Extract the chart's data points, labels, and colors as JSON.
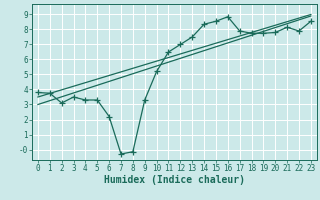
{
  "xlabel": "Humidex (Indice chaleur)",
  "ylabel": "",
  "background_color": "#cce9e9",
  "line_color": "#1a6b5a",
  "grid_color": "#ffffff",
  "xlim": [
    -0.5,
    23.5
  ],
  "ylim": [
    -0.7,
    9.7
  ],
  "xtick_vals": [
    0,
    1,
    2,
    3,
    4,
    5,
    6,
    7,
    8,
    9,
    10,
    11,
    12,
    13,
    14,
    15,
    16,
    17,
    18,
    19,
    20,
    21,
    22,
    23
  ],
  "xtick_labels": [
    "0",
    "1",
    "2",
    "3",
    "4",
    "5",
    "6",
    "7",
    "8",
    "9",
    "10",
    "11",
    "12",
    "13",
    "14",
    "15",
    "16",
    "17",
    "18",
    "19",
    "20",
    "21",
    "22",
    "23"
  ],
  "ytick_vals": [
    0,
    1,
    2,
    3,
    4,
    5,
    6,
    7,
    8,
    9
  ],
  "ytick_labels": [
    "-0",
    "1",
    "2",
    "3",
    "4",
    "5",
    "6",
    "7",
    "8",
    "9"
  ],
  "curve_x": [
    0,
    1,
    2,
    3,
    4,
    5,
    6,
    7,
    8,
    9,
    10,
    11,
    12,
    13,
    14,
    15,
    16,
    17,
    18,
    19,
    20,
    21,
    22,
    23
  ],
  "curve_y": [
    3.8,
    3.75,
    3.1,
    3.5,
    3.3,
    3.3,
    2.2,
    -0.3,
    -0.15,
    3.3,
    5.2,
    6.5,
    7.0,
    7.5,
    8.35,
    8.55,
    8.85,
    7.9,
    7.75,
    7.75,
    7.8,
    8.15,
    7.9,
    8.55
  ],
  "line1_x": [
    0,
    23
  ],
  "line1_y": [
    3.5,
    9.0
  ],
  "line2_x": [
    0,
    23
  ],
  "line2_y": [
    3.0,
    8.9
  ],
  "marker": "+",
  "markersize": 4,
  "markeredgewidth": 0.9,
  "linewidth": 0.9,
  "xlabel_fontsize": 7,
  "tick_fontsize": 5.5
}
